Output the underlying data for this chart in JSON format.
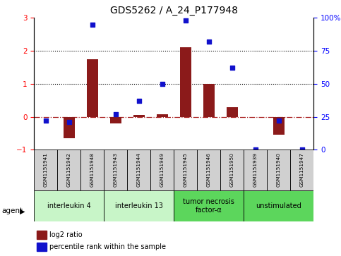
{
  "title": "GDS5262 / A_24_P177948",
  "samples": [
    "GSM1151941",
    "GSM1151942",
    "GSM1151948",
    "GSM1151943",
    "GSM1151944",
    "GSM1151949",
    "GSM1151945",
    "GSM1151946",
    "GSM1151950",
    "GSM1151939",
    "GSM1151940",
    "GSM1151947"
  ],
  "log2_ratio": [
    0.0,
    -0.65,
    1.75,
    -0.2,
    0.05,
    0.08,
    2.1,
    1.0,
    0.3,
    0.0,
    -0.55,
    0.0
  ],
  "percentile_rank": [
    22,
    21,
    95,
    27,
    37,
    50,
    98,
    82,
    62,
    0,
    22,
    0
  ],
  "bar_color": "#8B1A1A",
  "dot_color": "#1111CC",
  "zero_line_color": "#AA2222",
  "ylim_left": [
    -1,
    3
  ],
  "ylim_right": [
    0,
    100
  ],
  "yticks_left": [
    -1,
    0,
    1,
    2,
    3
  ],
  "yticks_right": [
    0,
    25,
    50,
    75,
    100
  ],
  "yticklabels_right": [
    "0",
    "25",
    "50",
    "75",
    "100%"
  ],
  "groups": [
    {
      "label": "interleukin 4",
      "spans": [
        0,
        2
      ],
      "color": "#c8f5c8"
    },
    {
      "label": "interleukin 13",
      "spans": [
        3,
        5
      ],
      "color": "#c8f5c8"
    },
    {
      "label": "tumor necrosis\nfactor-α",
      "spans": [
        6,
        8
      ],
      "color": "#5cd65c"
    },
    {
      "label": "unstimulated",
      "spans": [
        9,
        11
      ],
      "color": "#5cd65c"
    }
  ],
  "agent_label": "agent",
  "legend_log2": "log2 ratio",
  "legend_pct": "percentile rank within the sample",
  "sample_box_color": "#d0d0d0",
  "bar_width": 0.5
}
